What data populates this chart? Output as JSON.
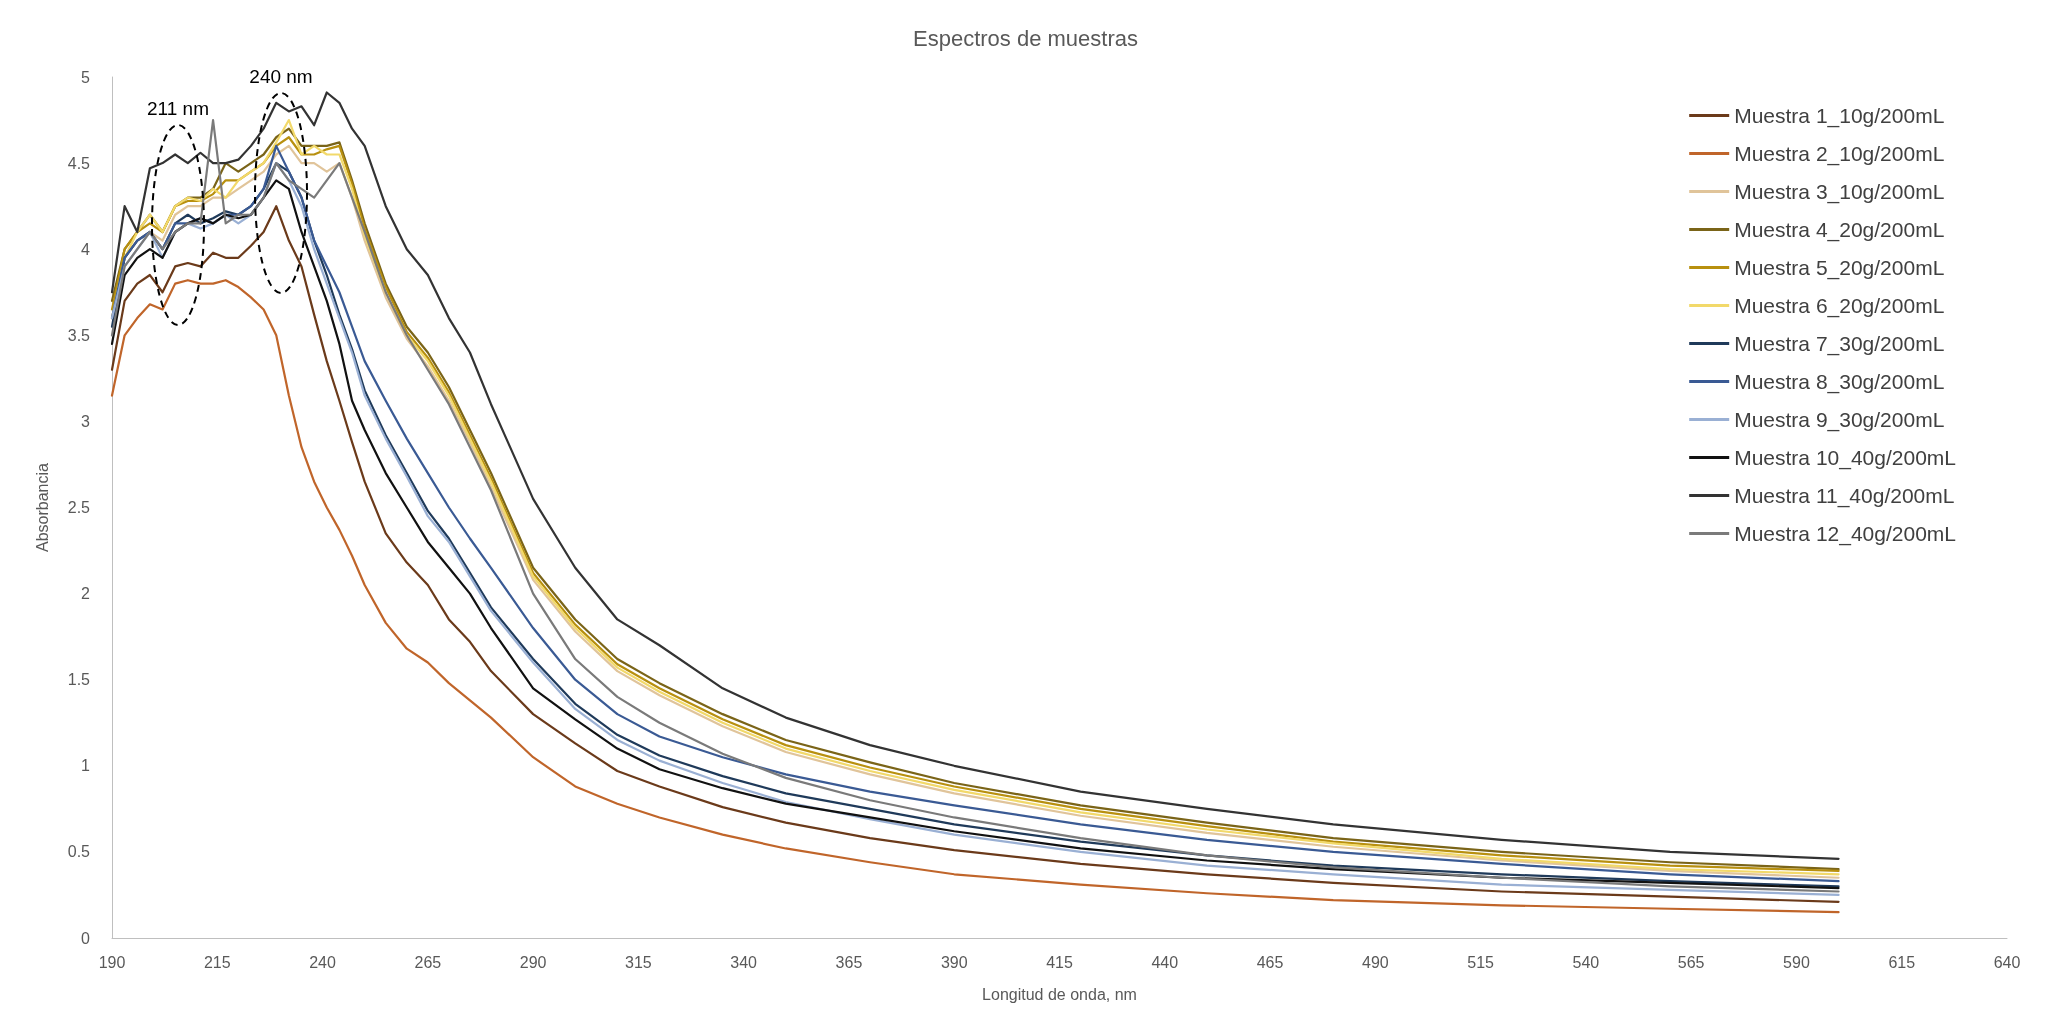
{
  "chart_data": {
    "type": "line",
    "title": "Espectros de muestras",
    "xlabel": "Longitud de onda, nm",
    "ylabel": "Absorbancia",
    "x": [
      190,
      193,
      196,
      199,
      202,
      205,
      208,
      211,
      214,
      217,
      220,
      223,
      226,
      229,
      232,
      235,
      238,
      241,
      244,
      247,
      250,
      255,
      260,
      265,
      270,
      275,
      280,
      290,
      300,
      310,
      320,
      335,
      350,
      370,
      390,
      420,
      450,
      480,
      520,
      560,
      600
    ],
    "series": [
      {
        "name": "Muestra 1_10g/200mL",
        "color": "#6b3a1a",
        "values": [
          3.3,
          3.7,
          3.8,
          3.85,
          3.75,
          3.9,
          3.92,
          3.9,
          3.98,
          3.95,
          3.95,
          4.02,
          4.1,
          4.25,
          4.05,
          3.9,
          3.62,
          3.35,
          3.12,
          2.88,
          2.65,
          2.35,
          2.18,
          2.05,
          1.85,
          1.72,
          1.55,
          1.3,
          1.13,
          0.97,
          0.88,
          0.76,
          0.67,
          0.58,
          0.51,
          0.43,
          0.37,
          0.32,
          0.27,
          0.24,
          0.21
        ]
      },
      {
        "name": "Muestra 2_10g/200mL",
        "color": "#c0652a",
        "values": [
          3.15,
          3.5,
          3.6,
          3.68,
          3.65,
          3.8,
          3.82,
          3.8,
          3.8,
          3.82,
          3.78,
          3.72,
          3.65,
          3.5,
          3.15,
          2.85,
          2.65,
          2.5,
          2.37,
          2.22,
          2.05,
          1.83,
          1.68,
          1.6,
          1.48,
          1.38,
          1.28,
          1.05,
          0.88,
          0.78,
          0.7,
          0.6,
          0.52,
          0.44,
          0.37,
          0.31,
          0.26,
          0.22,
          0.19,
          0.17,
          0.15
        ]
      },
      {
        "name": "Muestra 3_10g/200mL",
        "color": "#e0c49a",
        "values": [
          3.6,
          3.95,
          4.05,
          4.1,
          4.05,
          4.2,
          4.25,
          4.25,
          4.3,
          4.3,
          4.35,
          4.4,
          4.45,
          4.55,
          4.6,
          4.5,
          4.5,
          4.45,
          4.5,
          4.3,
          4.05,
          3.72,
          3.48,
          3.32,
          3.12,
          2.88,
          2.62,
          2.08,
          1.78,
          1.55,
          1.41,
          1.23,
          1.08,
          0.95,
          0.84,
          0.71,
          0.61,
          0.53,
          0.45,
          0.39,
          0.35
        ]
      },
      {
        "name": "Muestra 4_20g/200mL",
        "color": "#7a6418",
        "values": [
          3.7,
          4.0,
          4.1,
          4.2,
          4.1,
          4.25,
          4.3,
          4.3,
          4.35,
          4.5,
          4.45,
          4.5,
          4.55,
          4.65,
          4.7,
          4.6,
          4.6,
          4.6,
          4.62,
          4.4,
          4.15,
          3.8,
          3.55,
          3.4,
          3.2,
          2.95,
          2.7,
          2.15,
          1.85,
          1.62,
          1.48,
          1.3,
          1.15,
          1.02,
          0.9,
          0.77,
          0.67,
          0.58,
          0.5,
          0.44,
          0.4
        ]
      },
      {
        "name": "Muestra 5_20g/200mL",
        "color": "#b8900f",
        "values": [
          3.65,
          4.0,
          4.1,
          4.15,
          4.1,
          4.25,
          4.28,
          4.28,
          4.32,
          4.4,
          4.4,
          4.45,
          4.5,
          4.6,
          4.65,
          4.55,
          4.55,
          4.58,
          4.6,
          4.38,
          4.12,
          3.78,
          3.52,
          3.37,
          3.17,
          2.92,
          2.67,
          2.12,
          1.82,
          1.59,
          1.45,
          1.27,
          1.12,
          0.99,
          0.88,
          0.75,
          0.65,
          0.56,
          0.48,
          0.42,
          0.39
        ]
      },
      {
        "name": "Muestra 6_20g/200mL",
        "color": "#f2d96a",
        "values": [
          3.6,
          3.95,
          4.1,
          4.2,
          4.1,
          4.25,
          4.3,
          4.28,
          4.35,
          4.3,
          4.4,
          4.45,
          4.5,
          4.62,
          4.75,
          4.55,
          4.6,
          4.55,
          4.55,
          4.35,
          4.08,
          3.75,
          3.5,
          3.35,
          3.15,
          2.9,
          2.65,
          2.1,
          1.8,
          1.57,
          1.43,
          1.25,
          1.1,
          0.97,
          0.86,
          0.73,
          0.63,
          0.55,
          0.46,
          0.4,
          0.37
        ]
      },
      {
        "name": "Muestra 7_30g/200mL",
        "color": "#1f3a5a",
        "values": [
          3.55,
          3.95,
          4.05,
          4.1,
          4.0,
          4.15,
          4.2,
          4.15,
          4.18,
          4.22,
          4.2,
          4.25,
          4.35,
          4.5,
          4.45,
          4.3,
          4.05,
          3.85,
          3.62,
          3.42,
          3.18,
          2.92,
          2.7,
          2.48,
          2.32,
          2.12,
          1.92,
          1.62,
          1.36,
          1.18,
          1.06,
          0.94,
          0.84,
          0.75,
          0.66,
          0.56,
          0.48,
          0.42,
          0.37,
          0.33,
          0.3
        ]
      },
      {
        "name": "Muestra 8_30g/200mL",
        "color": "#3a5a94",
        "values": [
          3.6,
          3.95,
          4.05,
          4.1,
          4.0,
          4.15,
          4.15,
          4.18,
          4.15,
          4.2,
          4.2,
          4.25,
          4.35,
          4.6,
          4.45,
          4.3,
          4.05,
          3.9,
          3.75,
          3.55,
          3.35,
          3.12,
          2.9,
          2.7,
          2.5,
          2.32,
          2.15,
          1.8,
          1.5,
          1.3,
          1.17,
          1.05,
          0.95,
          0.85,
          0.77,
          0.66,
          0.57,
          0.5,
          0.43,
          0.37,
          0.33
        ]
      },
      {
        "name": "Muestra 9_30g/200mL",
        "color": "#9ab0d4",
        "values": [
          3.6,
          3.9,
          4.0,
          4.1,
          3.95,
          4.1,
          4.15,
          4.12,
          4.15,
          4.2,
          4.15,
          4.2,
          4.3,
          4.5,
          4.4,
          4.25,
          4.0,
          3.8,
          3.6,
          3.4,
          3.15,
          2.9,
          2.68,
          2.45,
          2.3,
          2.1,
          1.9,
          1.6,
          1.33,
          1.15,
          1.03,
          0.9,
          0.79,
          0.69,
          0.6,
          0.5,
          0.42,
          0.37,
          0.31,
          0.28,
          0.25
        ]
      },
      {
        "name": "Muestra 10_40g/200mL",
        "color": "#111111",
        "values": [
          3.45,
          3.85,
          3.95,
          4.0,
          3.95,
          4.1,
          4.15,
          4.18,
          4.15,
          4.2,
          4.18,
          4.2,
          4.3,
          4.4,
          4.35,
          4.1,
          3.9,
          3.7,
          3.45,
          3.12,
          2.95,
          2.7,
          2.5,
          2.3,
          2.15,
          2.0,
          1.8,
          1.45,
          1.27,
          1.1,
          0.98,
          0.87,
          0.78,
          0.7,
          0.62,
          0.52,
          0.45,
          0.4,
          0.35,
          0.32,
          0.29
        ]
      },
      {
        "name": "Muestra 11_40g/200mL",
        "color": "#333333",
        "values": [
          3.75,
          4.25,
          4.1,
          4.47,
          4.5,
          4.55,
          4.5,
          4.56,
          4.5,
          4.5,
          4.52,
          4.6,
          4.7,
          4.85,
          4.8,
          4.83,
          4.72,
          4.91,
          4.85,
          4.7,
          4.6,
          4.25,
          4.0,
          3.85,
          3.6,
          3.4,
          3.1,
          2.55,
          2.15,
          1.85,
          1.7,
          1.45,
          1.28,
          1.12,
          1.0,
          0.85,
          0.75,
          0.66,
          0.57,
          0.5,
          0.46
        ]
      },
      {
        "name": "Muestra 12_40g/200mL",
        "color": "#7a7a7a",
        "values": [
          3.5,
          3.9,
          4.0,
          4.1,
          4.0,
          4.1,
          4.15,
          4.15,
          4.75,
          4.15,
          4.2,
          4.2,
          4.3,
          4.5,
          4.4,
          4.35,
          4.3,
          4.4,
          4.5,
          4.3,
          4.1,
          3.75,
          3.5,
          3.3,
          3.1,
          2.85,
          2.6,
          2.0,
          1.62,
          1.4,
          1.25,
          1.07,
          0.93,
          0.8,
          0.7,
          0.58,
          0.48,
          0.41,
          0.35,
          0.3,
          0.27
        ]
      }
    ],
    "xlim": [
      190,
      640
    ],
    "xticks": [
      190,
      215,
      240,
      265,
      290,
      315,
      340,
      365,
      390,
      415,
      440,
      465,
      490,
      515,
      540,
      565,
      590,
      615,
      640
    ],
    "ylim": [
      0,
      5
    ],
    "yticks": [
      0,
      0.5,
      1,
      1.5,
      2,
      2.5,
      3,
      3.5,
      4,
      4.5,
      5
    ],
    "annotations": [
      "211 nm",
      "240 nm"
    ],
    "legend": "top right",
    "grid": false,
    "marker": "none",
    "line_style": "solid"
  }
}
